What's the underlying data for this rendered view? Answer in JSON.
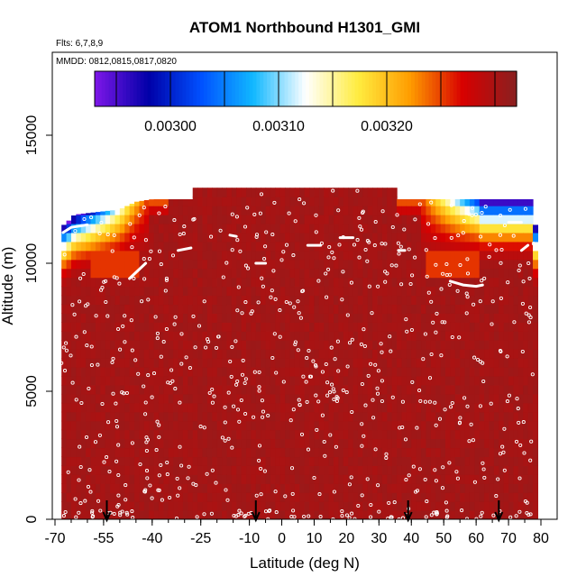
{
  "chart_data": {
    "type": "heatmap",
    "title": "ATOM1 Northbound H1301_GMI",
    "subtitle_flights": "Flts: 6,7,8,9",
    "subtitle_dates": "MMDD: 0812,0815,0817,0820",
    "xlabel": "Latitude (deg N)",
    "ylabel": "Altitude (m)",
    "xlim": [
      -70,
      80
    ],
    "ylim": [
      0,
      17500
    ],
    "x_ticks": [
      -70,
      -55,
      -40,
      -25,
      -10,
      0,
      10,
      20,
      30,
      40,
      50,
      60,
      70,
      80
    ],
    "x_tick_labels": [
      "-70",
      "-55",
      "-40",
      "-25",
      "-10",
      "0",
      "10",
      "20",
      "30",
      "40",
      "50",
      "60",
      "70",
      "80"
    ],
    "y_ticks": [
      0,
      5000,
      10000,
      15000
    ],
    "y_tick_labels": [
      "0",
      "5000",
      "10000",
      "15000"
    ],
    "colorbar": {
      "range": [
        0.00293,
        0.00332
      ],
      "tick_values": [
        0.003,
        0.0031,
        0.0032
      ],
      "tick_labels": [
        "0.00300",
        "0.00310",
        "0.00320"
      ],
      "colors": [
        "#7a16e6",
        "#0000a8",
        "#0050ff",
        "#11b8ff",
        "#ffffff",
        "#ffec40",
        "#ff9c00",
        "#d80000",
        "#8c1f1f"
      ]
    },
    "curtain_top_altitude": [
      {
        "lat": -67,
        "alt": 11500
      },
      {
        "lat": -64,
        "alt": 11900
      },
      {
        "lat": -50,
        "alt": 12100
      },
      {
        "lat": -45,
        "alt": 12400
      },
      {
        "lat": -40,
        "alt": 12500
      },
      {
        "lat": -27,
        "alt": 12500
      },
      {
        "lat": -27,
        "alt": 12950
      },
      {
        "lat": 35,
        "alt": 12950
      },
      {
        "lat": 35,
        "alt": 12500
      },
      {
        "lat": 77,
        "alt": 12500
      }
    ],
    "flight_markers_lat": [
      -54,
      -8,
      39,
      67
    ],
    "grid": false,
    "colorbar_placement": "top"
  }
}
